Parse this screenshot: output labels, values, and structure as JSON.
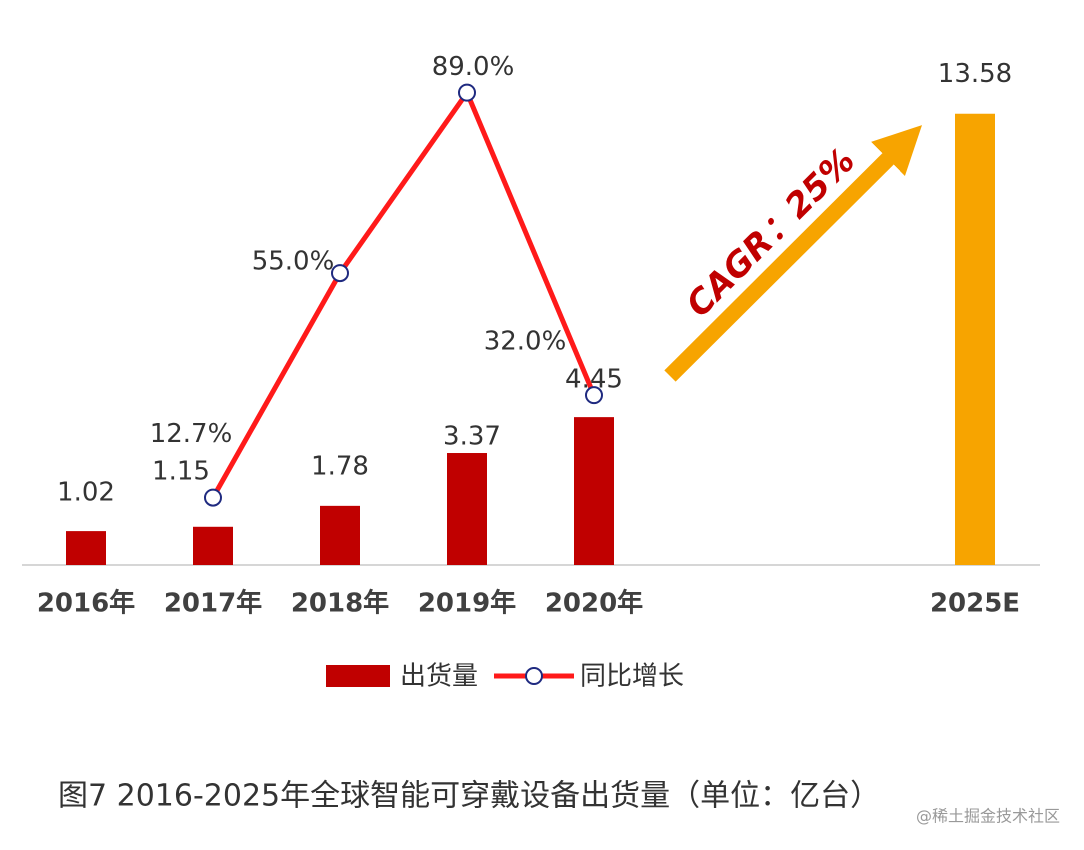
{
  "chart_data": {
    "type": "bar_line",
    "categories": [
      "2016年",
      "2017年",
      "2018年",
      "2019年",
      "2020年",
      null,
      null,
      "2025E"
    ],
    "series": [
      {
        "name": "出货量",
        "type": "bar",
        "color": "#c00000",
        "colors": [
          "#c00000",
          "#c00000",
          "#c00000",
          "#c00000",
          "#c00000",
          null,
          null,
          "#f7a400"
        ],
        "values": [
          1.02,
          1.15,
          1.78,
          3.37,
          4.45,
          null,
          null,
          13.58
        ]
      },
      {
        "name": "同比增长",
        "type": "line",
        "axis": "y2",
        "color": "#ff1a1a",
        "marker_color": "#1f2a80",
        "values": [
          null,
          12.7,
          55.0,
          89.0,
          32.0,
          null,
          null,
          null
        ],
        "value_labels": [
          null,
          "12.7%",
          "55.0%",
          "89.0%",
          "32.0%",
          null,
          null,
          null
        ]
      }
    ],
    "ylim": [
      0,
      16.1
    ],
    "y2lim": [
      0,
      100.8
    ],
    "annotations": [
      "CAGR：25%"
    ],
    "caption": "图7 2016-2025年全球智能可穿戴设备出货量（单位：亿台）",
    "watermark": "@稀土掘金技术社区"
  }
}
